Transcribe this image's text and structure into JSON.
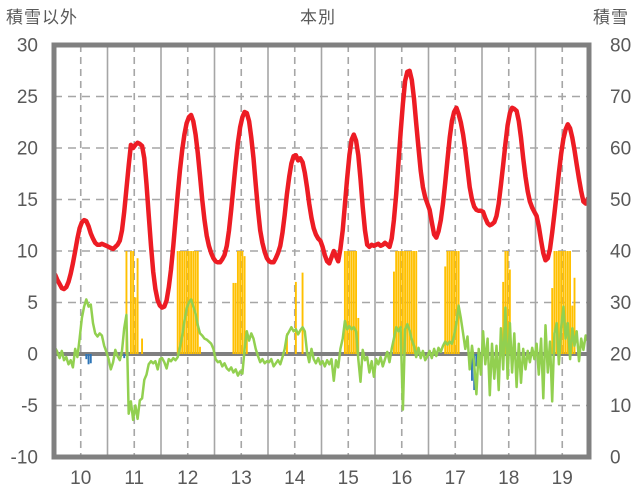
{
  "chart_data": {
    "type": "combo",
    "title": "本別",
    "left_axis": {
      "title": "積雪以外",
      "min": -10,
      "max": 30,
      "step": 5,
      "ticks": [
        30,
        25,
        20,
        15,
        10,
        5,
        0,
        -5,
        -10
      ]
    },
    "right_axis": {
      "title": "積雪",
      "min": 0,
      "max": 80,
      "step": 10,
      "ticks": [
        80,
        70,
        60,
        50,
        40,
        30,
        20,
        10,
        0
      ]
    },
    "x_axis": {
      "tick_labels": [
        "10",
        "11",
        "12",
        "13",
        "14",
        "15",
        "16",
        "17",
        "18",
        "19"
      ],
      "points_per_day": 24,
      "solid_gridlines": "day-boundaries",
      "dashed_gridlines": "day-middles"
    },
    "style": {
      "grid_color": "#A6A6A6",
      "zero_line_color": "#808080",
      "border_color": "#808080",
      "text_color": "#595959",
      "background": "#FFFFFF",
      "tick_font_size": 19
    },
    "series": [
      {
        "name": "red-line",
        "type": "line",
        "axis": "left",
        "color": "#ED1C24",
        "stroke_width": 4.5,
        "values": [
          7.7,
          7.2,
          6.8,
          6.4,
          6.3,
          6.5,
          7.0,
          7.8,
          8.8,
          10.0,
          11.2,
          12.2,
          12.8,
          13.0,
          12.9,
          12.4,
          11.7,
          11.2,
          10.8,
          10.6,
          10.6,
          10.7,
          10.6,
          10.5,
          10.4,
          10.3,
          10.2,
          10.4,
          10.6,
          11.0,
          12.0,
          13.8,
          16.0,
          18.3,
          20.3,
          20.0,
          20.3,
          20.5,
          20.4,
          20.2,
          19.0,
          16.5,
          13.5,
          10.5,
          8.0,
          6.3,
          5.2,
          4.7,
          4.5,
          4.6,
          5.2,
          6.5,
          8.2,
          10.5,
          13.0,
          15.5,
          17.8,
          19.8,
          21.3,
          22.4,
          23.0,
          23.2,
          22.6,
          21.3,
          19.5,
          17.3,
          15.0,
          13.0,
          11.5,
          10.5,
          9.8,
          9.3,
          9.0,
          8.9,
          8.9,
          9.2,
          9.6,
          10.5,
          12.0,
          14.0,
          16.2,
          18.5,
          20.5,
          22.0,
          23.0,
          23.5,
          23.4,
          22.6,
          21.0,
          19.0,
          16.5,
          14.0,
          12.0,
          10.8,
          9.9,
          9.3,
          9.0,
          8.9,
          8.9,
          9.3,
          9.8,
          10.5,
          11.8,
          13.5,
          15.5,
          17.2,
          18.5,
          19.2,
          19.3,
          18.8,
          19.0,
          18.6,
          17.6,
          16.2,
          14.6,
          13.2,
          12.2,
          11.6,
          11.2,
          11.0,
          10.4,
          9.6,
          9.0,
          8.8,
          9.4,
          10.0,
          9.5,
          9.0,
          10.2,
          12.0,
          14.5,
          17.0,
          19.3,
          20.8,
          21.3,
          20.7,
          19.3,
          17.0,
          14.3,
          12.0,
          10.6,
          10.4,
          10.6,
          10.5,
          10.6,
          10.7,
          10.5,
          10.6,
          10.8,
          10.6,
          10.4,
          11.2,
          13.0,
          15.5,
          18.5,
          21.5,
          24.3,
          26.5,
          27.4,
          27.5,
          26.6,
          24.8,
          22.4,
          20.0,
          17.8,
          16.2,
          15.2,
          14.6,
          14.0,
          12.8,
          11.6,
          11.3,
          11.9,
          13.0,
          14.6,
          16.6,
          18.8,
          21.0,
          22.6,
          23.5,
          23.9,
          23.3,
          22.5,
          21.3,
          19.8,
          18.0,
          16.2,
          15.0,
          14.3,
          14.0,
          13.9,
          13.9,
          13.8,
          13.2,
          12.7,
          12.5,
          12.6,
          12.8,
          13.4,
          14.6,
          16.4,
          18.4,
          20.4,
          22.2,
          23.4,
          23.9,
          23.8,
          23.6,
          22.6,
          21.0,
          19.0,
          17.2,
          15.8,
          14.8,
          14.2,
          13.8,
          13.4,
          12.4,
          11.0,
          9.8,
          9.1,
          9.3,
          10.2,
          11.8,
          13.6,
          15.6,
          17.6,
          19.4,
          20.9,
          21.8,
          22.3,
          21.9,
          21.0,
          19.8,
          18.4,
          17.0,
          15.8,
          14.8,
          14.6,
          15.1
        ]
      },
      {
        "name": "green-line",
        "type": "line",
        "axis": "left",
        "color": "#92D050",
        "stroke_width": 2.5,
        "values": [
          0.6,
          0.2,
          -0.4,
          0.3,
          -0.6,
          -0.3,
          -1.0,
          -0.6,
          -1.3,
          0.5,
          -0.3,
          1.5,
          3.5,
          4.6,
          5.3,
          4.6,
          4.8,
          3.0,
          2.0,
          1.7,
          2.0,
          1.8,
          0.8,
          0.2,
          -0.5,
          -1.5,
          -0.8,
          0.4,
          -0.2,
          -0.6,
          0.3,
          2.5,
          3.8,
          -5.8,
          -4.6,
          -6.4,
          -5.0,
          -6.3,
          -4.5,
          -4.3,
          -2.5,
          -2.0,
          -1.0,
          -0.7,
          -0.9,
          -0.7,
          -1.5,
          -0.5,
          -0.4,
          -0.8,
          -1.4,
          -0.5,
          -0.7,
          -0.4,
          -0.6,
          -0.3,
          0.6,
          1.8,
          3.2,
          4.4,
          5.0,
          5.3,
          4.6,
          3.9,
          2.8,
          2.0,
          1.8,
          1.5,
          1.4,
          1.2,
          1.0,
          0.5,
          -0.5,
          -0.8,
          -0.7,
          -1.2,
          -0.9,
          -1.4,
          -1.6,
          -1.3,
          -1.8,
          -1.5,
          -2.1,
          -1.7,
          -1.9,
          0.5,
          2.2,
          1.3,
          2.0,
          1.5,
          0.5,
          -0.2,
          -0.8,
          -0.5,
          -0.9,
          -0.7,
          -0.8,
          -0.5,
          -1.2,
          -0.9,
          -0.6,
          -1.0,
          -0.3,
          0.5,
          1.8,
          2.2,
          2.6,
          2.2,
          2.4,
          1.9,
          2.3,
          2.6,
          2.2,
          0.2,
          -0.8,
          0.5,
          -0.5,
          -0.9,
          -0.4,
          -1.0,
          -0.7,
          -1.2,
          -0.6,
          -1.0,
          -0.5,
          -2.6,
          -0.6,
          -1.3,
          0.5,
          1.5,
          3.2,
          2.4,
          2.7,
          2.4,
          2.6,
          2.2,
          -0.5,
          -2.7,
          0.4,
          -0.6,
          -0.3,
          -1.8,
          -0.7,
          -2.2,
          -0.5,
          -1.0,
          -0.3,
          -1.2,
          -0.5,
          0.2,
          -0.8,
          0.5,
          1.5,
          2.6,
          2.2,
          2.6,
          -5.4,
          2.4,
          2.9,
          2.3,
          1.4,
          0.8,
          -0.3,
          0.6,
          -0.4,
          0.3,
          -0.6,
          -0.2,
          0.3,
          -0.4,
          0.5,
          -0.2,
          0.6,
          0.2,
          0.8,
          1.2,
          0.9,
          1.2,
          1.0,
          1.8,
          3.0,
          4.7,
          3.5,
          2.0,
          0.5,
          1.7,
          -1.5,
          0.8,
          -1.0,
          -3.9,
          0.5,
          -2.0,
          2.2,
          -1.0,
          1.5,
          -4.0,
          1.0,
          -2.4,
          0.8,
          -3.5,
          2.5,
          -1.5,
          4.5,
          -2.4,
          3.0,
          -1.8,
          2.0,
          -3.2,
          1.0,
          -2.8,
          0.5,
          -1.5,
          0.3,
          -0.8,
          0.6,
          -0.5,
          1.0,
          -2.0,
          1.5,
          -4.3,
          2.8,
          -1.8,
          1.2,
          -4.6,
          2.0,
          3.0,
          -1.0,
          2.5,
          4.6,
          1.5,
          3.0,
          -0.5,
          2.5,
          0.8,
          2.2,
          -0.7,
          1.5,
          0.4,
          1.8,
          1.2
        ]
      },
      {
        "name": "orange-bars",
        "type": "bar",
        "axis": "left",
        "color": "#FFC000",
        "values": [
          0,
          0,
          0,
          0,
          0,
          0,
          0,
          0,
          0,
          0,
          0,
          0,
          0,
          0,
          0,
          0,
          0,
          0,
          0,
          0,
          0,
          0,
          0,
          0,
          0,
          0,
          0,
          0,
          0,
          0,
          0,
          0,
          10,
          0,
          10,
          10,
          5.5,
          9.3,
          0,
          1.5,
          0,
          0,
          0,
          0,
          0,
          0,
          0,
          0,
          0,
          0,
          0,
          0,
          0,
          0,
          0,
          10,
          10,
          10,
          10,
          10,
          10,
          10,
          10,
          10,
          10,
          0.7,
          0,
          0,
          0,
          0,
          0,
          0,
          0,
          0,
          0,
          0,
          0,
          0,
          0,
          0,
          6.9,
          6.9,
          10,
          10,
          10,
          9.5,
          1.5,
          0,
          0,
          0,
          0,
          0,
          0,
          0,
          0,
          0,
          0,
          0,
          0,
          0,
          0,
          0,
          0,
          0,
          2.0,
          0,
          0,
          0,
          7.0,
          0,
          0,
          7.9,
          0,
          0,
          0,
          0,
          0,
          0,
          0,
          0,
          0,
          0,
          0,
          0,
          0,
          0,
          0,
          0,
          0,
          0,
          10,
          10,
          10,
          10,
          10,
          10,
          3.5,
          0,
          0,
          0,
          0,
          0,
          0,
          0,
          0,
          0,
          0,
          0,
          0,
          0,
          0,
          0,
          8.0,
          10,
          10,
          10,
          10,
          10,
          10,
          10,
          10,
          10,
          10,
          0,
          0,
          0,
          0,
          0,
          0,
          0,
          0,
          0,
          0,
          0,
          0,
          8.5,
          10,
          10,
          10,
          10,
          10,
          10,
          0,
          0,
          0,
          0,
          0,
          0,
          0,
          0,
          0,
          0,
          0,
          0,
          0,
          0,
          0,
          0,
          0,
          0,
          0,
          7.0,
          10,
          10,
          8.2,
          0,
          0,
          0,
          0,
          0,
          0,
          0,
          0,
          0,
          0,
          0,
          0,
          0,
          0,
          0,
          0,
          0,
          0,
          6.4,
          10,
          10,
          10,
          10,
          10,
          10,
          10,
          10,
          4.7,
          7.4,
          0,
          0,
          0,
          0,
          0,
          0
        ]
      },
      {
        "name": "blue-bars",
        "type": "bar",
        "axis": "left",
        "color": "#2E75B6",
        "values": [
          0,
          0,
          0,
          0,
          0,
          0,
          0,
          0,
          0,
          0,
          0,
          0,
          0,
          0,
          -0.5,
          -1.0,
          -0.9,
          0,
          0,
          0,
          0,
          0,
          0,
          0,
          0,
          0,
          0,
          0,
          0,
          0,
          0,
          -0.4,
          0,
          0,
          0,
          0,
          0,
          0,
          0,
          0,
          0,
          0,
          0,
          0,
          0,
          0,
          0,
          0,
          0,
          0,
          0,
          0,
          0,
          0,
          0,
          0,
          0,
          0,
          0,
          0,
          0,
          0,
          0,
          0,
          0,
          0,
          0,
          0,
          0,
          0,
          0,
          0,
          0,
          0,
          0,
          0,
          0,
          0,
          0,
          0,
          0,
          0,
          0,
          0,
          0,
          0,
          0,
          0,
          0,
          0,
          0,
          0,
          0,
          0,
          0,
          0,
          0,
          0,
          0,
          0,
          0,
          0,
          0,
          0,
          0,
          0,
          0,
          0,
          0,
          0,
          0,
          0,
          0,
          0,
          0,
          0,
          0,
          0,
          0,
          0,
          0,
          0,
          0,
          0,
          0,
          0,
          0,
          0,
          0,
          0,
          0,
          0,
          0,
          0,
          0,
          0,
          0,
          0,
          0,
          0,
          0,
          0,
          0,
          0,
          0,
          0,
          0,
          0,
          0,
          0,
          0,
          0,
          0,
          0,
          0,
          0,
          0,
          0,
          0,
          0,
          0,
          0,
          0,
          0,
          0,
          0,
          0,
          0,
          0,
          0,
          0,
          0,
          0,
          0,
          0,
          0,
          0,
          0,
          0,
          0,
          0,
          0,
          0,
          0,
          0,
          0,
          0,
          -2.6,
          -3.5,
          -1.2,
          -1.2,
          0,
          0,
          0,
          0,
          0,
          0,
          0,
          0,
          0,
          0,
          0,
          0,
          0,
          0,
          0,
          0,
          0,
          0,
          0,
          0,
          0,
          0,
          0,
          0,
          0,
          0,
          0,
          0,
          0,
          0,
          0,
          0,
          0,
          0,
          0,
          0,
          0,
          0,
          0,
          0,
          0,
          0,
          0,
          0,
          0,
          0,
          0,
          0,
          0
        ]
      }
    ]
  }
}
